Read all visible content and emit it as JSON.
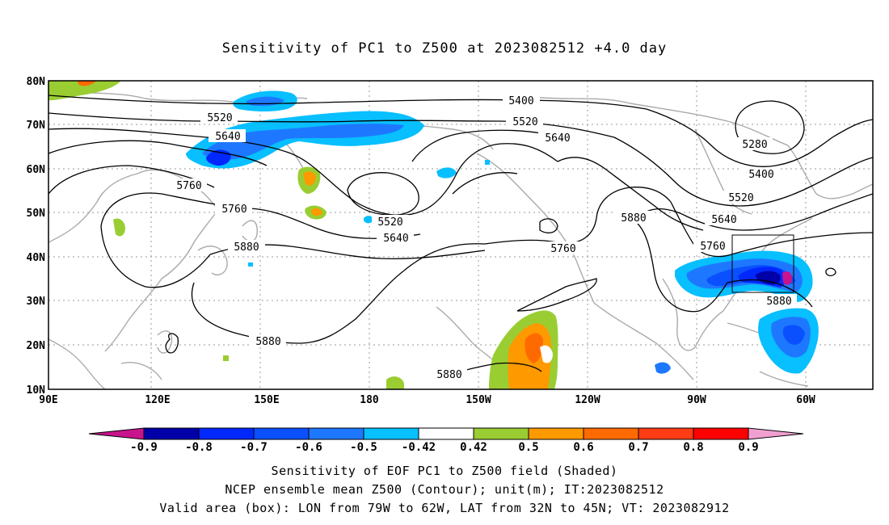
{
  "title": "Sensitivity of PC1 to Z500 at 2023082512 +4.0 day",
  "map": {
    "lon_labels": [
      "90E",
      "120E",
      "150E",
      "180",
      "150W",
      "120W",
      "90W",
      "60W"
    ],
    "lat_labels": [
      "80N",
      "70N",
      "60N",
      "50N",
      "40N",
      "30N",
      "20N",
      "10N"
    ],
    "lon_range": [
      90,
      330
    ],
    "lat_range": [
      10,
      80
    ],
    "contour_labels": [
      "5400",
      "5520",
      "5640",
      "5520",
      "5640",
      "5760",
      "5760",
      "5880",
      "5880",
      "5520",
      "5640",
      "5880",
      "5760",
      "5880",
      "5880",
      "5280",
      "5400",
      "5520",
      "5640",
      "5760",
      "5880"
    ],
    "valid_box": {
      "lon_west": 79,
      "lon_east": 62,
      "lat_south": 32,
      "lat_north": 45
    }
  },
  "colorbar": {
    "labels": [
      "-0.9",
      "-0.8",
      "-0.7",
      "-0.6",
      "-0.5",
      "-0.42",
      "0.42",
      "0.5",
      "0.6",
      "0.7",
      "0.8",
      "0.9"
    ],
    "colors": [
      "#0000a8",
      "#0028ff",
      "#0a50ff",
      "#1e78ff",
      "#08bfff",
      "#ffffff",
      "#9acd32",
      "#ff9900",
      "#ff6a00",
      "#ff3c14",
      "#ff0000"
    ],
    "low_extend_color": "#c8148c",
    "high_extend_color": "#f0a0d0"
  },
  "captions": {
    "line1": "Sensitivity of EOF PC1 to Z500 field (Shaded)",
    "line2": "NCEP ensemble mean Z500 (Contour); unit(m); IT:2023082512",
    "line3": "Valid area (box): LON from 79W to 62W, LAT from 32N to 45N; VT: 2023082912"
  }
}
